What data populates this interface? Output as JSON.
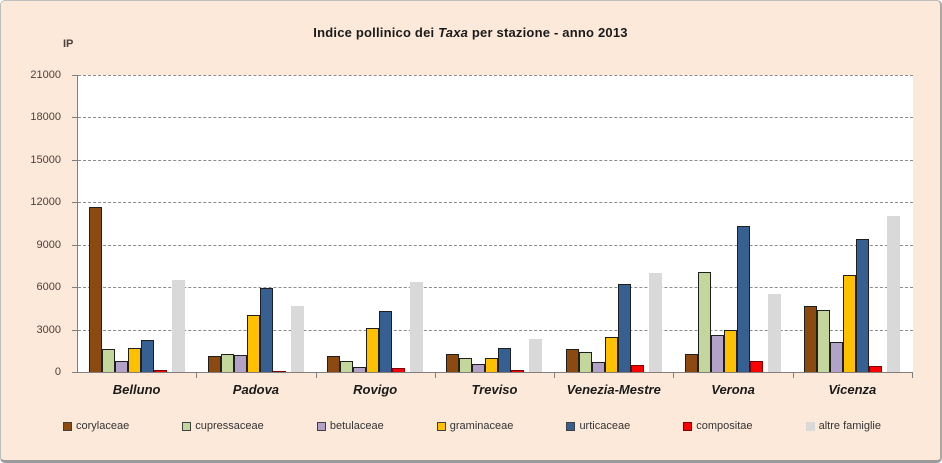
{
  "window": {
    "background_color": "#FDE9D9",
    "plot_background_color": "#ffffff"
  },
  "title": {
    "prefix": "Indice pollinico dei ",
    "italic": "Taxa",
    "suffix": "  per stazione - anno 2013"
  },
  "y_axis": {
    "label": "IP",
    "tick_labels": [
      "0",
      "3000",
      "6000",
      "9000",
      "12000",
      "15000",
      "18000",
      "21000"
    ]
  },
  "chart_data": {
    "type": "bar",
    "title": "Indice pollinico dei Taxa per stazione - anno 2013",
    "ylabel": "IP",
    "ylim": [
      0,
      21000
    ],
    "ytick_step": 3000,
    "grid": "horizontal-dashed",
    "legend_position": "bottom",
    "categories": [
      "Belluno",
      "Padova",
      "Rovigo",
      "Treviso",
      "Venezia-Mestre",
      "Verona",
      "Vicenza"
    ],
    "series": [
      {
        "name": "corylaceae",
        "color": "#8C4A10",
        "border": "dark",
        "values": [
          11700,
          1100,
          1150,
          1250,
          1600,
          1300,
          4700
        ]
      },
      {
        "name": "cupressaceae",
        "color": "#C3D69B",
        "border": "dark",
        "values": [
          1600,
          1300,
          800,
          1000,
          1400,
          7100,
          4350
        ]
      },
      {
        "name": "betulaceae",
        "color": "#B3A2C7",
        "border": "dark",
        "values": [
          750,
          1200,
          350,
          600,
          700,
          2650,
          2100
        ]
      },
      {
        "name": "graminaceae",
        "color": "#FFC000",
        "border": "dark",
        "values": [
          1700,
          4050,
          3100,
          1000,
          2500,
          3000,
          6850
        ]
      },
      {
        "name": "urticaceae",
        "color": "#376092",
        "border": "dark",
        "values": [
          2250,
          5950,
          4300,
          1700,
          6200,
          10350,
          9400
        ]
      },
      {
        "name": "compositae",
        "color": "#FF0000",
        "border": "red",
        "values": [
          150,
          100,
          280,
          150,
          500,
          750,
          400
        ]
      },
      {
        "name": "altre famiglie",
        "color": "#D9D9D9",
        "border": "none",
        "values": [
          6500,
          4650,
          6400,
          2350,
          7000,
          5500,
          11000
        ],
        "gap_before": true
      }
    ]
  }
}
